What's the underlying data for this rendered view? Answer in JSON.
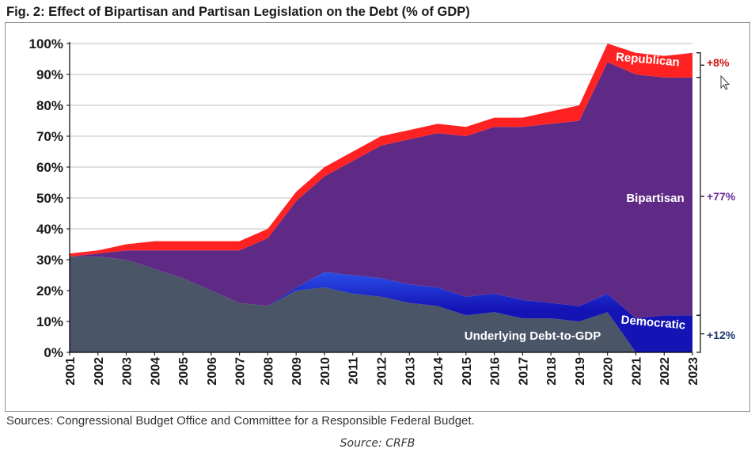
{
  "title": "Fig. 2: Effect of Bipartisan and Partisan Legislation on the Debt (% of GDP)",
  "sources": "Sources: Congressional Budget Office and Committee for a Responsible Federal Budget.",
  "credit": "Source: CRFB",
  "colors": {
    "underlying": "#4a5668",
    "democratic": "#3366ff",
    "democratic_dark": "#1414b4",
    "bipartisan": "#5e2a86",
    "republican": "#ff2222",
    "label_purple": "#6a2e96",
    "label_red": "#cc1111",
    "label_navy": "#1f3a6e"
  },
  "chart_data": {
    "type": "area",
    "stacked": true,
    "x": [
      "2001",
      "2002",
      "2003",
      "2004",
      "2005",
      "2006",
      "2007",
      "2008",
      "2009",
      "2010",
      "2011",
      "2012",
      "2013",
      "2014",
      "2015",
      "2016",
      "2017",
      "2018",
      "2019",
      "2020",
      "2021",
      "2022",
      "2023"
    ],
    "ylim": [
      0,
      100
    ],
    "yticks": [
      "0%",
      "10%",
      "20%",
      "30%",
      "40%",
      "50%",
      "60%",
      "70%",
      "80%",
      "90%",
      "100%"
    ],
    "grid": true,
    "series": [
      {
        "name": "Underlying Debt-to-GDP",
        "values": [
          31,
          31,
          30,
          27,
          24,
          20,
          16,
          15,
          20,
          21,
          19,
          18,
          16,
          15,
          12,
          13,
          11,
          11,
          10,
          13,
          0,
          0,
          0
        ]
      },
      {
        "name": "Democratic",
        "values": [
          0,
          0,
          0,
          0,
          0,
          0,
          0,
          0,
          1,
          5,
          6,
          6,
          6,
          6,
          6,
          6,
          6,
          5,
          5,
          6,
          11,
          12,
          12
        ]
      },
      {
        "name": "Bipartisan",
        "values": [
          0,
          1,
          3,
          6,
          9,
          13,
          17,
          22,
          28,
          31,
          37,
          43,
          47,
          50,
          52,
          54,
          56,
          58,
          60,
          75,
          79,
          77,
          77
        ]
      },
      {
        "name": "Republican",
        "values": [
          1,
          1,
          2,
          3,
          3,
          3,
          3,
          3,
          3,
          3,
          3,
          3,
          3,
          3,
          3,
          3,
          3,
          4,
          5,
          6,
          7,
          7,
          8
        ]
      }
    ],
    "annotations": {
      "republican_label": "Republican",
      "bipartisan_label": "Bipartisan",
      "democratic_label": "Democratic",
      "underlying_label": "Underlying Debt-to-GDP",
      "bracket_republican": "+8%",
      "bracket_bipartisan": "+77%",
      "bracket_democratic": "+12%"
    }
  }
}
